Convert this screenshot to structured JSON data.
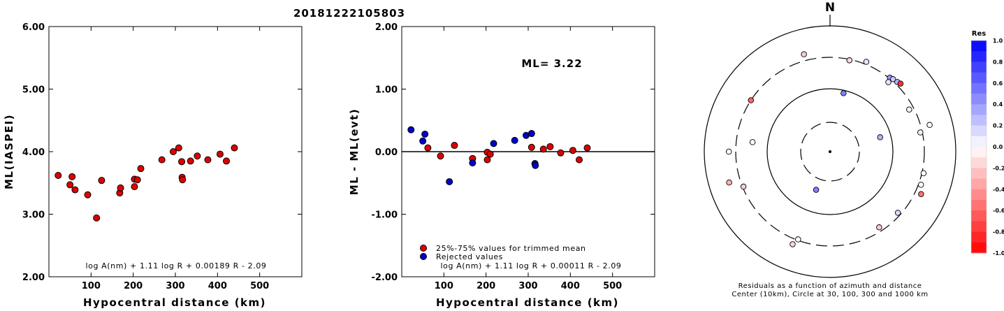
{
  "title": "20181222105803",
  "chart_data": [
    {
      "type": "scatter",
      "xlabel": "Hypocentral distance (km)",
      "ylabel": "ML(IASPEI)",
      "xlim": [
        0,
        600
      ],
      "ylim": [
        2.0,
        6.0
      ],
      "xticks": [
        "100",
        "200",
        "300",
        "400",
        "500"
      ],
      "yticks": [
        "2.00",
        "3.00",
        "4.00",
        "5.00",
        "6.00"
      ],
      "formula": "log A(nm) + 1.11 log R + 0.00189 R - 2.09",
      "series": [
        {
          "color": "#dd0000",
          "points": [
            [
              22,
              3.62
            ],
            [
              50,
              3.47
            ],
            [
              55,
              3.6
            ],
            [
              62,
              3.39
            ],
            [
              92,
              3.31
            ],
            [
              113,
              2.94
            ],
            [
              125,
              3.54
            ],
            [
              168,
              3.34
            ],
            [
              170,
              3.42
            ],
            [
              203,
              3.44
            ],
            [
              203,
              3.56
            ],
            [
              210,
              3.55
            ],
            [
              218,
              3.73
            ],
            [
              268,
              3.87
            ],
            [
              295,
              4.0
            ],
            [
              308,
              4.06
            ],
            [
              315,
              3.84
            ],
            [
              316,
              3.59
            ],
            [
              317,
              3.55
            ],
            [
              336,
              3.85
            ],
            [
              352,
              3.93
            ],
            [
              377,
              3.87
            ],
            [
              406,
              3.96
            ],
            [
              421,
              3.85
            ],
            [
              440,
              4.06
            ]
          ]
        }
      ]
    },
    {
      "type": "scatter",
      "xlabel": "Hypocentral distance (km)",
      "ylabel": "ML - ML(evt)",
      "xlim": [
        0,
        600
      ],
      "ylim": [
        -2.0,
        2.0
      ],
      "xticks": [
        "100",
        "200",
        "300",
        "400",
        "500"
      ],
      "yticks": [
        "-2.00",
        "-1.00",
        "0.00",
        "1.00",
        "2.00"
      ],
      "annotation": "ML= 3.22",
      "formula": "log A(nm) + 1.11 log R + 0.00011 R - 2.09",
      "legend": [
        "25%-75% values for trimmed mean",
        "Rejected values"
      ],
      "series": [
        {
          "name": "25%-75% values for trimmed mean",
          "color": "#dd0000",
          "points": [
            [
              62,
              0.06
            ],
            [
              92,
              -0.07
            ],
            [
              125,
              0.1
            ],
            [
              168,
              -0.11
            ],
            [
              203,
              -0.13
            ],
            [
              203,
              -0.01
            ],
            [
              210,
              -0.04
            ],
            [
              308,
              0.07
            ],
            [
              336,
              0.04
            ],
            [
              352,
              0.08
            ],
            [
              377,
              -0.02
            ],
            [
              406,
              0.02
            ],
            [
              421,
              -0.13
            ],
            [
              440,
              0.06
            ]
          ]
        },
        {
          "name": "Rejected values",
          "color": "#0000cc",
          "points": [
            [
              22,
              0.35
            ],
            [
              50,
              0.17
            ],
            [
              55,
              0.28
            ],
            [
              113,
              -0.48
            ],
            [
              168,
              -0.18
            ],
            [
              218,
              0.13
            ],
            [
              268,
              0.18
            ],
            [
              295,
              0.26
            ],
            [
              308,
              0.29
            ],
            [
              316,
              -0.19
            ],
            [
              317,
              -0.22
            ]
          ]
        }
      ]
    },
    {
      "type": "polar",
      "north_label": "N",
      "caption": [
        "Residuals as a function of azimuth and distance",
        "Center (10km), Circle at 30, 100, 300 and 1000 km"
      ],
      "colorbar": {
        "title": "Res",
        "ticks": [
          "1.0",
          "0.8",
          "0.6",
          "0.4",
          "0.2",
          "0.0",
          "-0.2",
          "-0.4",
          "-0.6",
          "-0.8",
          "-1.0"
        ]
      },
      "stations": [
        {
          "az": 12,
          "dist": 290,
          "res": -0.15
        },
        {
          "az": 22,
          "dist": 330,
          "res": 0.1
        },
        {
          "az": 39,
          "dist": 310,
          "res": 0.4
        },
        {
          "az": 41,
          "dist": 320,
          "res": 0.2
        },
        {
          "az": 44,
          "dist": 330,
          "res": 0.3
        },
        {
          "az": 46,
          "dist": 345,
          "res": -0.8
        },
        {
          "az": 40,
          "dist": 265,
          "res": 0.1
        },
        {
          "az": 62,
          "dist": 255,
          "res": 0.05
        },
        {
          "az": 75,
          "dist": 420,
          "res": 0.0
        },
        {
          "az": 78,
          "dist": 280,
          "res": 0.05
        },
        {
          "az": 103,
          "dist": 320,
          "res": 0.0
        },
        {
          "az": 110,
          "dist": 330,
          "res": 0.0
        },
        {
          "az": 115,
          "dist": 380,
          "res": -0.55
        },
        {
          "az": 132,
          "dist": 270,
          "res": 0.15
        },
        {
          "az": 147,
          "dist": 260,
          "res": -0.2
        },
        {
          "az": 200,
          "dist": 290,
          "res": 0.0
        },
        {
          "az": 202,
          "dist": 370,
          "res": -0.15
        },
        {
          "az": 248,
          "dist": 290,
          "res": -0.2
        },
        {
          "az": 253,
          "dist": 460,
          "res": -0.3
        },
        {
          "az": 270,
          "dist": 390,
          "res": 0.0
        },
        {
          "az": 277,
          "dist": 170,
          "res": 0.0
        },
        {
          "az": 303,
          "dist": 300,
          "res": -0.6
        },
        {
          "az": 345,
          "dist": 385,
          "res": -0.2
        },
        {
          "az": 13,
          "dist": 90,
          "res": 0.5
        },
        {
          "az": 74,
          "dist": 68,
          "res": 0.3
        },
        {
          "az": 200,
          "dist": 45,
          "res": 0.5
        }
      ]
    }
  ]
}
